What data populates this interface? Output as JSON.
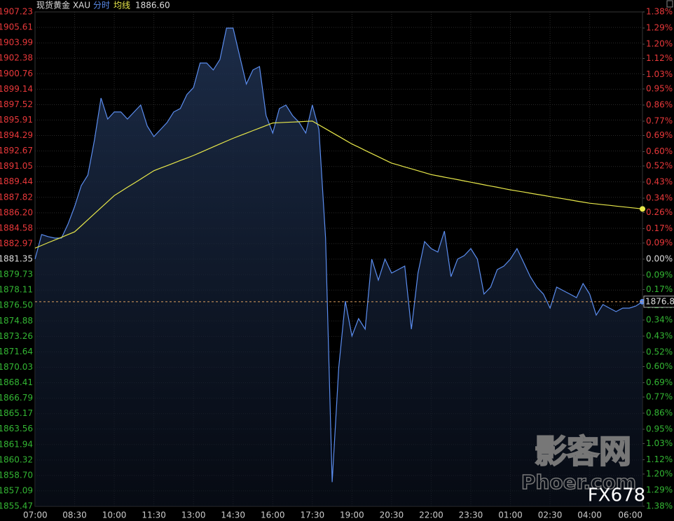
{
  "chart_data": {
    "type": "line",
    "mode": "分时",
    "avg_value_label": "1886.60",
    "x": [
      "07:00",
      "07:15",
      "07:30",
      "07:45",
      "08:00",
      "08:15",
      "08:30",
      "08:45",
      "09:00",
      "09:15",
      "09:30",
      "09:45",
      "10:00",
      "10:15",
      "10:30",
      "10:45",
      "11:00",
      "11:15",
      "11:30",
      "11:45",
      "12:00",
      "12:15",
      "12:30",
      "12:45",
      "13:00",
      "13:15",
      "13:30",
      "13:45",
      "14:00",
      "14:15",
      "14:30",
      "14:45",
      "15:00",
      "15:15",
      "15:30",
      "15:45",
      "16:00",
      "16:15",
      "16:30",
      "16:45",
      "17:00",
      "17:15",
      "17:30",
      "17:45",
      "18:00",
      "18:15",
      "18:30",
      "18:45",
      "19:00",
      "19:15",
      "19:30",
      "19:45",
      "20:00",
      "20:15",
      "20:30",
      "20:45",
      "21:00",
      "21:15",
      "21:30",
      "21:45",
      "22:00",
      "22:15",
      "22:30",
      "22:45",
      "23:00",
      "23:15",
      "23:30",
      "23:45",
      "00:00",
      "00:15",
      "00:30",
      "00:45",
      "01:00",
      "01:15",
      "01:30",
      "01:45",
      "02:00",
      "02:15",
      "02:30",
      "02:45",
      "03:00",
      "03:15",
      "03:30",
      "03:45",
      "04:00",
      "04:15",
      "04:30",
      "04:45",
      "05:00",
      "05:15",
      "05:30",
      "05:45",
      "06:00"
    ],
    "series": [
      {
        "name": "现货黄金 XAU",
        "color": "#5b8def",
        "values": [
          1881.35,
          1883.92,
          1883.7,
          1883.55,
          1883.55,
          1885.02,
          1886.85,
          1889.05,
          1890.15,
          1893.81,
          1898.21,
          1896.01,
          1896.75,
          1896.75,
          1896.01,
          1896.75,
          1897.48,
          1895.28,
          1894.18,
          1894.91,
          1895.65,
          1896.75,
          1897.11,
          1898.58,
          1899.31,
          1901.88,
          1901.88,
          1901.15,
          1902.25,
          1905.54,
          1905.54,
          1902.61,
          1899.68,
          1901.15,
          1901.51,
          1896.38,
          1894.55,
          1897.11,
          1897.48,
          1896.38,
          1895.65,
          1894.55,
          1897.48,
          1894.91,
          1883.55,
          1858.0,
          1870.0,
          1876.95,
          1873.29,
          1875.12,
          1874.02,
          1881.35,
          1879.15,
          1881.35,
          1879.89,
          1880.25,
          1880.62,
          1874.02,
          1879.89,
          1883.18,
          1882.45,
          1882.09,
          1884.28,
          1879.52,
          1881.35,
          1881.72,
          1882.45,
          1881.35,
          1877.69,
          1878.42,
          1880.25,
          1880.62,
          1881.35,
          1882.45,
          1880.99,
          1879.52,
          1878.42,
          1877.69,
          1876.22,
          1878.42,
          1878.05,
          1877.69,
          1877.32,
          1878.79,
          1877.69,
          1875.49,
          1876.59,
          1876.22,
          1875.85,
          1876.22,
          1876.22,
          1876.44,
          1876.89
        ]
      },
      {
        "name": "均线",
        "color": "#e8e84a",
        "values": [
          1882.5,
          1882.78,
          1883.07,
          1883.35,
          1883.63,
          1883.92,
          1884.2,
          1884.83,
          1885.47,
          1886.1,
          1886.73,
          1887.37,
          1888.0,
          1888.43,
          1888.87,
          1889.3,
          1889.73,
          1890.17,
          1890.6,
          1890.87,
          1891.13,
          1891.4,
          1891.67,
          1891.93,
          1892.2,
          1892.5,
          1892.8,
          1893.1,
          1893.4,
          1893.7,
          1894.0,
          1894.27,
          1894.53,
          1894.8,
          1895.07,
          1895.33,
          1895.6,
          1895.63,
          1895.67,
          1895.7,
          1895.73,
          1895.77,
          1895.8,
          1895.4,
          1895.0,
          1894.6,
          1894.2,
          1893.8,
          1893.4,
          1893.07,
          1892.73,
          1892.4,
          1892.07,
          1891.73,
          1891.4,
          1891.2,
          1891.0,
          1890.8,
          1890.6,
          1890.4,
          1890.2,
          1890.07,
          1889.93,
          1889.8,
          1889.67,
          1889.53,
          1889.4,
          1889.27,
          1889.13,
          1889.0,
          1888.87,
          1888.73,
          1888.6,
          1888.48,
          1888.37,
          1888.25,
          1888.13,
          1888.02,
          1887.9,
          1887.78,
          1887.67,
          1887.55,
          1887.43,
          1887.32,
          1887.2,
          1887.13,
          1887.05,
          1886.98,
          1886.9,
          1886.83,
          1886.75,
          1886.68,
          1886.6
        ]
      }
    ],
    "xticks": [
      "07:00",
      "08:30",
      "10:00",
      "11:30",
      "13:00",
      "14:30",
      "16:00",
      "17:30",
      "19:00",
      "20:30",
      "22:00",
      "23:30",
      "01:00",
      "02:30",
      "04:00",
      "06:00"
    ],
    "ylim": [
      1855.47,
      1907.23
    ],
    "yticks": [
      1907.23,
      1905.61,
      1903.99,
      1902.38,
      1900.76,
      1899.14,
      1897.52,
      1895.91,
      1894.29,
      1892.67,
      1891.05,
      1889.44,
      1887.82,
      {
        "value": 1886.2,
        "label": "1886.20"
      },
      1884.58,
      1882.97,
      1881.35,
      1879.73,
      1878.11,
      {
        "value": 1876.5,
        "label": "1876.50"
      },
      1874.88,
      1873.26,
      1871.64,
      1870.03,
      1868.41,
      1866.79,
      1865.17,
      1863.56,
      1861.94,
      1860.32,
      {
        "value": 1858.7,
        "label": "1858.70"
      },
      1857.09,
      1855.47
    ],
    "y2lim": [
      -1.38,
      1.38
    ],
    "y2ticks": [
      {
        "value": 1.38,
        "label": "1.38%"
      },
      {
        "value": 1.29,
        "label": "1.29%"
      },
      {
        "value": 1.2,
        "label": "1.20%"
      },
      {
        "value": 1.12,
        "label": "1.12%"
      },
      {
        "value": 1.03,
        "label": "1.03%"
      },
      {
        "value": 0.95,
        "label": "0.95%"
      },
      {
        "value": 0.86,
        "label": "0.86%"
      },
      {
        "value": 0.77,
        "label": "0.77%"
      },
      {
        "value": 0.69,
        "label": "0.69%"
      },
      {
        "value": 0.6,
        "label": "0.60%"
      },
      {
        "value": 0.52,
        "label": "0.52%"
      },
      {
        "value": 0.43,
        "label": "0.43%"
      },
      {
        "value": 0.34,
        "label": "0.34%"
      },
      {
        "value": 0.26,
        "label": "0.26%"
      },
      {
        "value": 0.17,
        "label": "0.17%"
      },
      {
        "value": 0.09,
        "label": "0.09%"
      },
      {
        "value": 0,
        "label": "0.00%"
      },
      {
        "value": -0.09,
        "label": "0.09%"
      },
      {
        "value": -0.17,
        "label": "0.17%"
      },
      {
        "value": -0.26,
        "label": "0.26%"
      },
      {
        "value": -0.34,
        "label": "0.34%"
      },
      {
        "value": -0.43,
        "label": "0.43%"
      },
      {
        "value": -0.52,
        "label": "0.52%"
      },
      {
        "value": -0.6,
        "label": "0.60%"
      },
      {
        "value": -0.69,
        "label": "0.69%"
      },
      {
        "value": -0.77,
        "label": "0.77%"
      },
      {
        "value": -0.86,
        "label": "0.86%"
      },
      {
        "value": -0.95,
        "label": "0.95%"
      },
      {
        "value": -1.03,
        "label": "1.03%"
      },
      {
        "value": -1.12,
        "label": "1.12%"
      },
      {
        "value": -1.2,
        "label": "1.20%"
      },
      {
        "value": -1.29,
        "label": "1.29%"
      },
      {
        "value": -1.38,
        "label": "1.38%"
      }
    ],
    "grid": true,
    "watermark": [
      "影客网",
      "Phoer.com",
      "FX678"
    ]
  }
}
